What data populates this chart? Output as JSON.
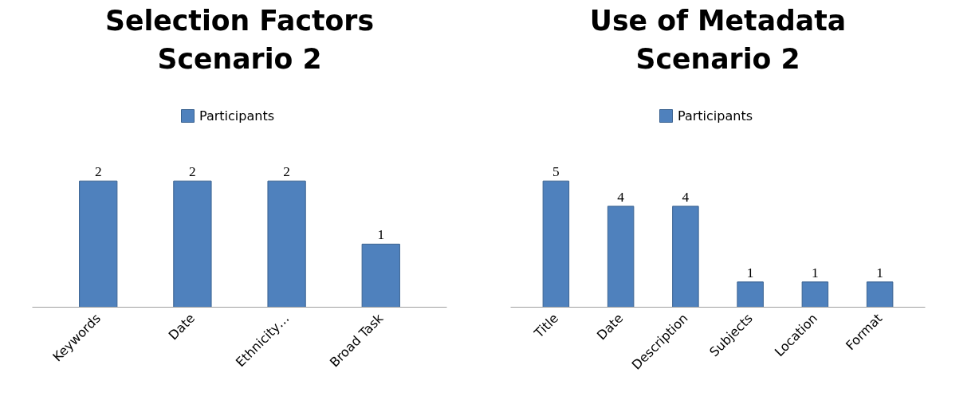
{
  "chart_data": [
    {
      "type": "bar",
      "title": "Selection Factors Scenario 2",
      "categories": [
        "Keywords",
        "Date",
        "Ethnicity…",
        "Broad Task"
      ],
      "series": [
        {
          "name": "Participants",
          "color": "#4f81bd",
          "values": [
            2,
            2,
            2,
            1
          ]
        }
      ],
      "data_labels": true,
      "legend": "top",
      "grid": false
    },
    {
      "type": "bar",
      "title": "Use of Metadata Scenario 2",
      "categories": [
        "Title",
        "Date",
        "Description",
        "Subjects",
        "Location",
        "Format"
      ],
      "series": [
        {
          "name": "Participants",
          "color": "#4f81bd",
          "values": [
            5,
            4,
            4,
            1,
            1,
            1
          ]
        }
      ],
      "data_labels": true,
      "legend": "top",
      "grid": false
    }
  ]
}
